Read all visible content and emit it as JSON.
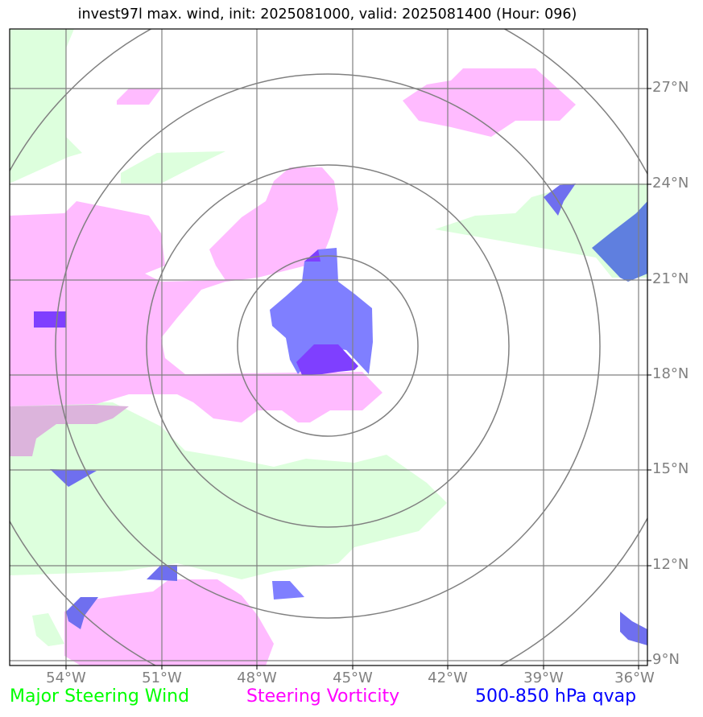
{
  "title": "invest97l max. wind, init: 2025081000, valid: 2025081400 (Hour: 096)",
  "lat_labels": [
    "27°N",
    "24°N",
    "21°N",
    "18°N",
    "15°N",
    "12°N",
    "9°N"
  ],
  "lon_labels": [
    "54°W",
    "51°W",
    "48°W",
    "45°W",
    "42°W",
    "39°W",
    "36°W"
  ],
  "legend": {
    "wind": "Major Steering Wind",
    "vorticity": "Steering Vorticity",
    "qvap": "500-850 hPa qvap"
  },
  "colors": {
    "wind_fill": "#ddffdd",
    "vorticity_fill": "#ffbbff",
    "qvap_fill": "#7f7fff",
    "qvap_strong": "#7f3fff",
    "qvap_alt": "#5f7fdf",
    "wind_text": "#00ff00",
    "vorticity_text": "#ff00ff",
    "qvap_text": "#0000ff",
    "grid": "#808080",
    "ring": "#808080"
  },
  "range_rings": {
    "center_lat": 19,
    "center_lon": -45.85,
    "radii_deg": [
      2.7,
      5.4,
      8.1,
      10.8
    ]
  }
}
